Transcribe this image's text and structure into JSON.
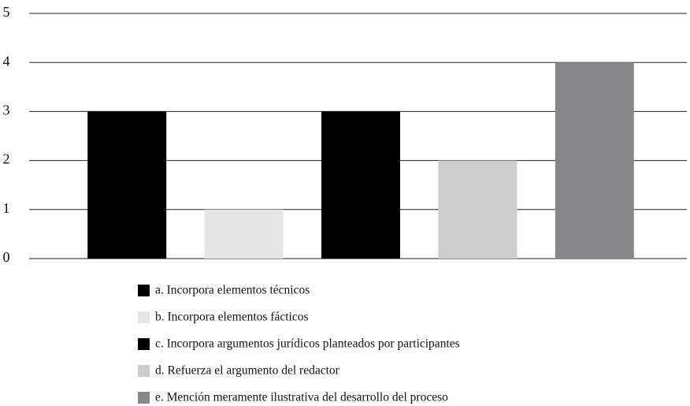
{
  "chart_data": {
    "type": "bar",
    "categories": [
      "a. Incorpora elementos técnicos",
      "b. Incorpora elementos fácticos",
      "c. Incorpora argumentos jurídicos planteados por participantes",
      "d. Refuerza el argumento del redactor",
      "e. Mención meramente ilustrativa del desarrollo del proceso"
    ],
    "values": [
      3,
      1,
      3,
      2,
      4
    ],
    "colors": [
      "#000000",
      "#e6e6e6",
      "#000000",
      "#cccccc",
      "#87888a"
    ],
    "ylim": [
      0,
      5
    ],
    "yticks": [
      0,
      1,
      2,
      3,
      4,
      5
    ],
    "grid": true,
    "legend": "bottom"
  }
}
